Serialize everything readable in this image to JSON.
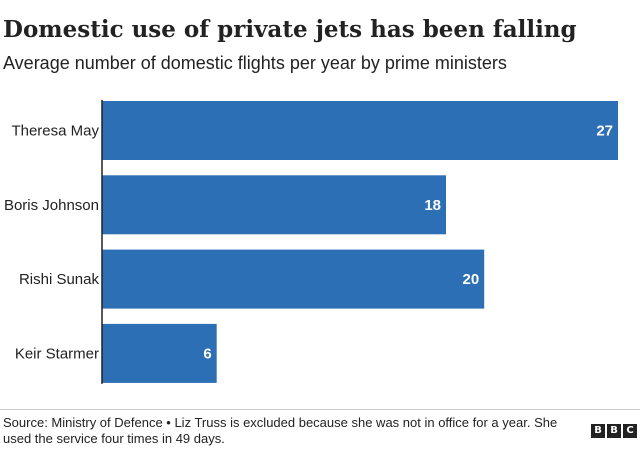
{
  "chart_data": {
    "type": "bar",
    "orientation": "horizontal",
    "title": "Domestic use of private jets has been falling",
    "subtitle": "Average number of domestic flights per year by prime ministers",
    "categories": [
      "Theresa May",
      "Boris Johnson",
      "Rishi Sunak",
      "Keir Starmer"
    ],
    "values": [
      27,
      18,
      20,
      6
    ],
    "xlim": [
      0,
      27
    ],
    "xlabel": "",
    "ylabel": "",
    "grid": false,
    "legend": "none",
    "bar_color": "#2d6fb4",
    "value_label_color": "#ffffff"
  },
  "footer": {
    "source": "Source: Ministry of Defence • Liz Truss is excluded because she was not in office for a year. She used the service four times in 49 days.",
    "logo_letters": [
      "B",
      "B",
      "C"
    ]
  },
  "colors": {
    "text": "#222222",
    "axis": "#222222",
    "divider": "#cccccc"
  }
}
